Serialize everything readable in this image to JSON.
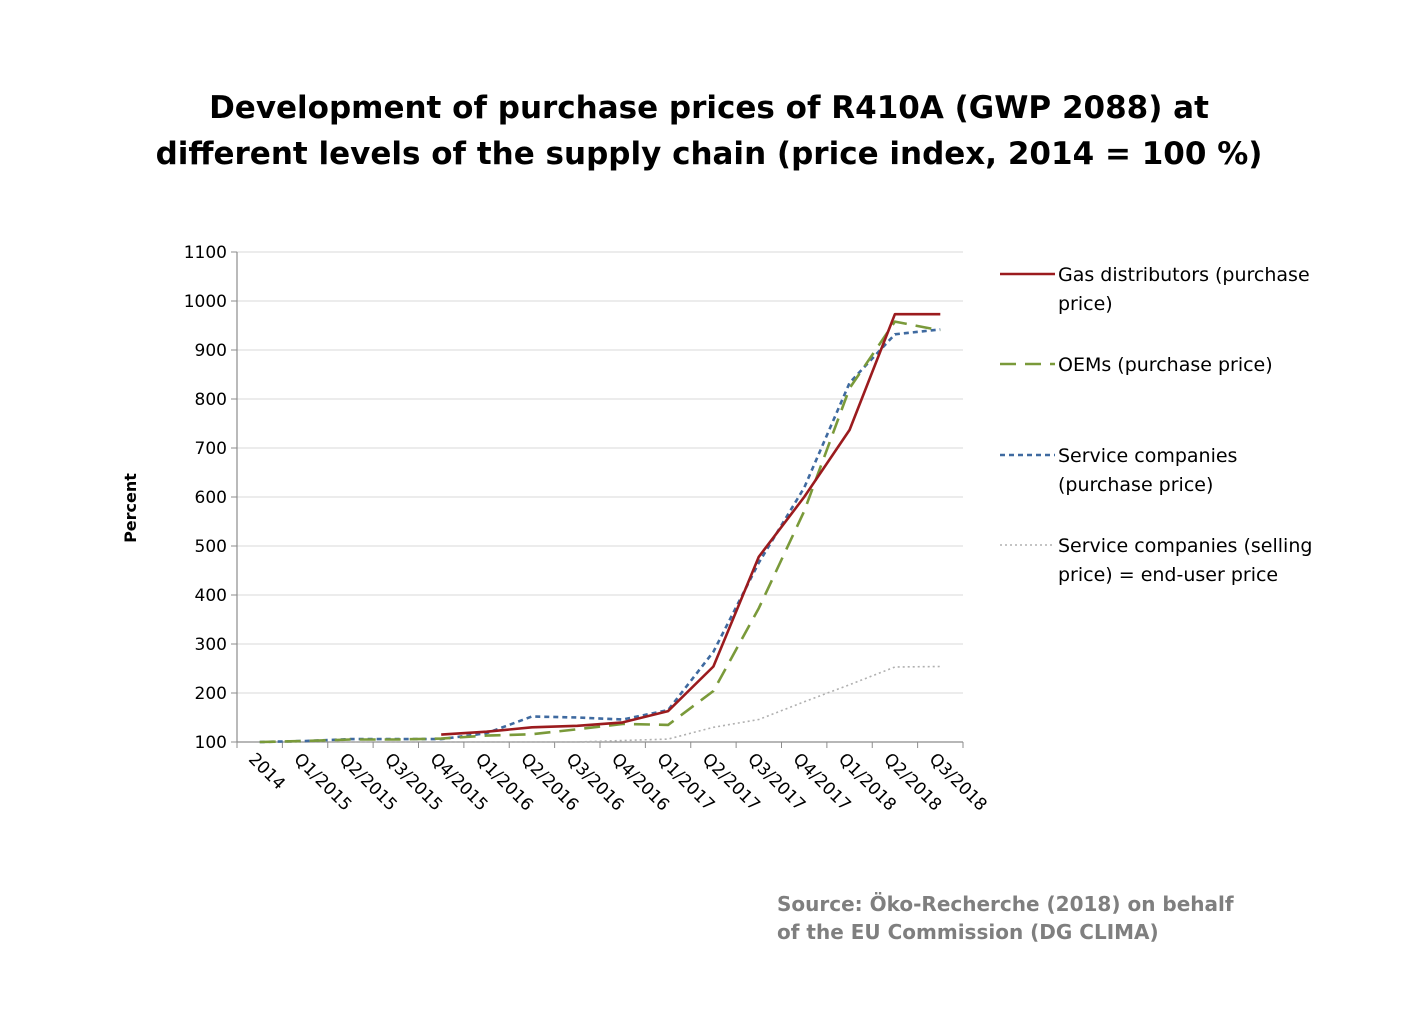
{
  "chart_data": {
    "type": "line",
    "title": [
      "Development of purchase prices of R410A (GWP 2088) at",
      "different levels of the supply chain (price index, 2014 = 100 %)"
    ],
    "ylabel": "Percent",
    "xlabel": "",
    "ylim": [
      100,
      1100
    ],
    "yticks": [
      100,
      200,
      300,
      400,
      500,
      600,
      700,
      800,
      900,
      1000,
      1100
    ],
    "grid": true,
    "legend_position": "right",
    "x": [
      "2014",
      "Q1/2015",
      "Q2/2015",
      "Q3/2015",
      "Q4/2015",
      "Q1/2016",
      "Q2/2016",
      "Q3/2016",
      "Q4/2016",
      "Q1/2017",
      "Q2/2017",
      "Q3/2017",
      "Q4/2017",
      "Q1/2018",
      "Q2/2018",
      "Q3/2018"
    ],
    "series": [
      {
        "name_lines": [
          "Gas distributors (purchase",
          "price)"
        ],
        "color": "#9b1b1e",
        "dash": "solid",
        "values": [
          null,
          null,
          null,
          null,
          115,
          121,
          130,
          133,
          140,
          163,
          254,
          478,
          600,
          737,
          973,
          973
        ]
      },
      {
        "name_lines": [
          "OEMs (purchase price)"
        ],
        "color": "#7a9a3a",
        "dash": "long-dash",
        "values": [
          100,
          102,
          105,
          105,
          107,
          113,
          116,
          126,
          137,
          135,
          204,
          373,
          571,
          822,
          958,
          940
        ]
      },
      {
        "name_lines": [
          "Service companies",
          "(purchase price)"
        ],
        "color": "#3f6aa0",
        "dash": "short-dash",
        "values": [
          100,
          102,
          106,
          106,
          106,
          118,
          152,
          150,
          146,
          165,
          284,
          466,
          619,
          833,
          932,
          942
        ]
      },
      {
        "name_lines": [
          "Service companies (selling",
          "price) = end-user price"
        ],
        "color": "#b0b0b0",
        "dash": "dotted",
        "values": [
          100,
          100,
          100,
          100,
          100,
          100,
          100,
          100,
          103,
          106,
          130,
          146,
          182,
          217,
          253,
          254
        ]
      }
    ]
  },
  "source_lines": [
    "Source: Öko-Recherche (2018) on behalf",
    "of the EU Commission (DG CLIMA)"
  ]
}
